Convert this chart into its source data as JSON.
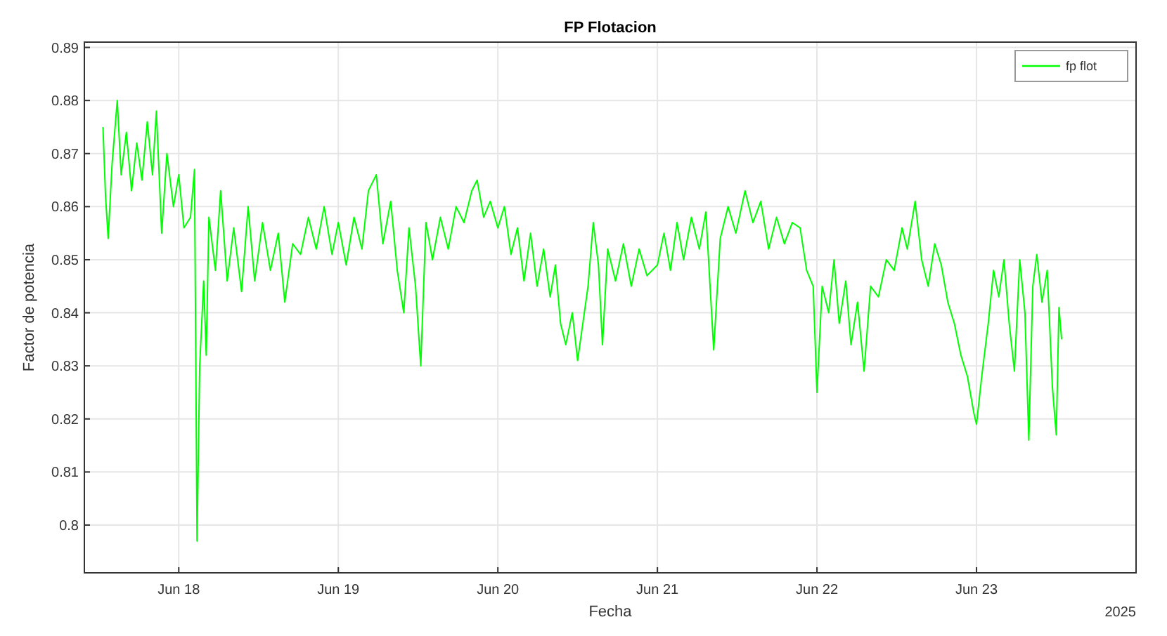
{
  "chart_data": {
    "type": "line",
    "title": "FP Flotacion",
    "xlabel": "Fecha",
    "ylabel": "Factor de potencia",
    "annotations": [
      "2025"
    ],
    "xlim": [
      "2025-06-17T09:48",
      "2025-06-24T00:00"
    ],
    "xticks": [
      {
        "value": "2025-06-18",
        "label": "Jun 18"
      },
      {
        "value": "2025-06-19",
        "label": "Jun 19"
      },
      {
        "value": "2025-06-20",
        "label": "Jun 20"
      },
      {
        "value": "2025-06-21",
        "label": "Jun 21"
      },
      {
        "value": "2025-06-22",
        "label": "Jun 22"
      },
      {
        "value": "2025-06-23",
        "label": "Jun 23"
      }
    ],
    "ylim": [
      0.791,
      0.891
    ],
    "yticks": [
      0.8,
      0.81,
      0.82,
      0.83,
      0.84,
      0.85,
      0.86,
      0.87,
      0.88,
      0.89
    ],
    "grid": true,
    "legend": "top right",
    "line_style": "solid",
    "x": [
      "2025-06-17T12:36",
      "2025-06-17T12:59",
      "2025-06-17T13:23",
      "2025-06-17T13:58",
      "2025-06-17T14:45",
      "2025-06-17T15:20",
      "2025-06-17T16:07",
      "2025-06-17T16:54",
      "2025-06-17T17:41",
      "2025-06-17T18:28",
      "2025-06-17T19:16",
      "2025-06-17T20:03",
      "2025-06-17T20:38",
      "2025-06-17T21:26",
      "2025-06-17T22:13",
      "2025-06-17T23:12",
      "2025-06-18T00:00",
      "2025-06-18T00:47",
      "2025-06-18T01:46",
      "2025-06-18T02:22",
      "2025-06-18T02:45",
      "2025-06-18T03:09",
      "2025-06-18T03:45",
      "2025-06-18T04:08",
      "2025-06-18T04:32",
      "2025-06-18T05:31",
      "2025-06-18T06:18",
      "2025-06-18T07:17",
      "2025-06-18T08:16",
      "2025-06-18T09:27",
      "2025-06-18T10:26",
      "2025-06-18T11:25",
      "2025-06-18T12:36",
      "2025-06-18T13:47",
      "2025-06-18T14:58",
      "2025-06-18T15:57",
      "2025-06-18T17:08",
      "2025-06-18T18:19",
      "2025-06-18T19:30",
      "2025-06-18T20:41",
      "2025-06-18T21:52",
      "2025-06-18T23:03",
      "2025-06-19T00:00",
      "2025-06-19T01:11",
      "2025-06-19T02:22",
      "2025-06-19T03:33",
      "2025-06-19T04:32",
      "2025-06-19T05:43",
      "2025-06-19T06:42",
      "2025-06-19T07:53",
      "2025-06-19T08:52",
      "2025-06-19T09:51",
      "2025-06-19T10:38",
      "2025-06-19T11:37",
      "2025-06-19T12:24",
      "2025-06-19T13:11",
      "2025-06-19T14:10",
      "2025-06-19T15:21",
      "2025-06-19T16:32",
      "2025-06-19T17:43",
      "2025-06-19T18:54",
      "2025-06-19T20:05",
      "2025-06-19T20:53",
      "2025-06-19T21:52",
      "2025-06-19T22:51",
      "2025-06-20T00:00",
      "2025-06-20T00:59",
      "2025-06-20T01:58",
      "2025-06-20T02:57",
      "2025-06-20T03:56",
      "2025-06-20T04:55",
      "2025-06-20T05:54",
      "2025-06-20T06:53",
      "2025-06-20T07:52",
      "2025-06-20T08:39",
      "2025-06-20T09:26",
      "2025-06-20T10:13",
      "2025-06-20T11:12",
      "2025-06-20T12:00",
      "2025-06-20T12:47",
      "2025-06-20T13:34",
      "2025-06-20T14:21",
      "2025-06-20T15:08",
      "2025-06-20T15:44",
      "2025-06-20T16:31",
      "2025-06-20T17:42",
      "2025-06-20T18:53",
      "2025-06-20T20:04",
      "2025-06-20T21:15",
      "2025-06-20T22:26",
      "2025-06-21T00:00",
      "2025-06-21T00:59",
      "2025-06-21T01:58",
      "2025-06-21T02:57",
      "2025-06-21T03:56",
      "2025-06-21T05:07",
      "2025-06-21T06:18",
      "2025-06-21T07:17",
      "2025-06-21T08:28",
      "2025-06-21T09:27",
      "2025-06-21T10:38",
      "2025-06-21T11:48",
      "2025-06-21T13:11",
      "2025-06-21T14:22",
      "2025-06-21T15:33",
      "2025-06-21T16:44",
      "2025-06-21T17:55",
      "2025-06-21T19:06",
      "2025-06-21T20:17",
      "2025-06-21T21:28",
      "2025-06-21T22:27",
      "2025-06-21T23:26",
      "2025-06-22T00:00",
      "2025-06-22T00:47",
      "2025-06-22T01:46",
      "2025-06-22T02:34",
      "2025-06-22T03:21",
      "2025-06-22T04:20",
      "2025-06-22T05:07",
      "2025-06-22T06:06",
      "2025-06-22T07:05",
      "2025-06-22T08:04",
      "2025-06-22T09:15",
      "2025-06-22T10:26",
      "2025-06-22T11:37",
      "2025-06-22T12:48",
      "2025-06-22T13:35",
      "2025-06-22T14:46",
      "2025-06-22T15:45",
      "2025-06-22T16:44",
      "2025-06-22T17:43",
      "2025-06-22T18:42",
      "2025-06-22T19:41",
      "2025-06-22T20:40",
      "2025-06-22T21:39",
      "2025-06-22T22:38",
      "2025-06-22T23:37",
      "2025-06-23T00:00",
      "2025-06-23T00:47",
      "2025-06-23T01:46",
      "2025-06-23T02:34",
      "2025-06-23T03:21",
      "2025-06-23T04:08",
      "2025-06-23T04:55",
      "2025-06-23T05:42",
      "2025-06-23T06:30",
      "2025-06-23T07:17",
      "2025-06-23T07:52",
      "2025-06-23T08:28",
      "2025-06-23T09:04",
      "2025-06-23T09:51",
      "2025-06-23T10:38",
      "2025-06-23T11:25",
      "2025-06-23T12:00",
      "2025-06-23T12:24",
      "2025-06-23T12:48"
    ],
    "series": [
      {
        "name": "fp flot",
        "color": "#00ff00",
        "values": [
          0.875,
          0.862,
          0.854,
          0.868,
          0.88,
          0.866,
          0.874,
          0.863,
          0.872,
          0.865,
          0.876,
          0.866,
          0.878,
          0.855,
          0.87,
          0.86,
          0.866,
          0.856,
          0.858,
          0.867,
          0.797,
          0.83,
          0.846,
          0.832,
          0.858,
          0.848,
          0.863,
          0.846,
          0.856,
          0.844,
          0.86,
          0.846,
          0.857,
          0.848,
          0.855,
          0.842,
          0.853,
          0.851,
          0.858,
          0.852,
          0.86,
          0.851,
          0.857,
          0.849,
          0.858,
          0.852,
          0.863,
          0.866,
          0.853,
          0.861,
          0.848,
          0.84,
          0.856,
          0.845,
          0.83,
          0.857,
          0.85,
          0.858,
          0.852,
          0.86,
          0.857,
          0.863,
          0.865,
          0.858,
          0.861,
          0.856,
          0.86,
          0.851,
          0.856,
          0.846,
          0.855,
          0.845,
          0.852,
          0.843,
          0.849,
          0.838,
          0.834,
          0.84,
          0.831,
          0.838,
          0.845,
          0.857,
          0.849,
          0.834,
          0.852,
          0.846,
          0.853,
          0.845,
          0.852,
          0.847,
          0.849,
          0.855,
          0.848,
          0.857,
          0.85,
          0.858,
          0.852,
          0.859,
          0.833,
          0.854,
          0.86,
          0.855,
          0.863,
          0.857,
          0.861,
          0.852,
          0.858,
          0.853,
          0.857,
          0.856,
          0.848,
          0.845,
          0.825,
          0.845,
          0.84,
          0.85,
          0.838,
          0.846,
          0.834,
          0.842,
          0.829,
          0.845,
          0.843,
          0.85,
          0.848,
          0.856,
          0.852,
          0.861,
          0.85,
          0.845,
          0.853,
          0.849,
          0.842,
          0.838,
          0.832,
          0.828,
          0.821,
          0.819,
          0.828,
          0.838,
          0.848,
          0.843,
          0.85,
          0.838,
          0.829,
          0.85,
          0.84,
          0.816,
          0.845,
          0.851,
          0.842,
          0.848,
          0.826,
          0.817,
          0.841,
          0.835
        ]
      }
    ]
  }
}
